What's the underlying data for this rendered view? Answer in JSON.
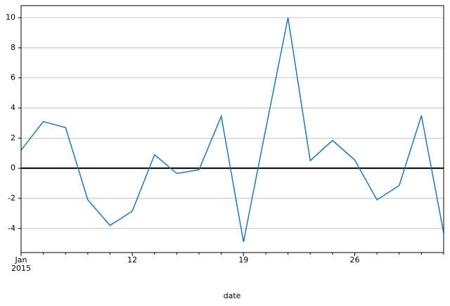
{
  "chart_data": {
    "type": "line",
    "x_label": "date",
    "categories": [
      "Jan\n2015",
      null,
      null,
      null,
      null,
      "12",
      null,
      null,
      null,
      null,
      "19",
      null,
      null,
      null,
      null,
      "26",
      null,
      null,
      null,
      null
    ],
    "series": [
      {
        "color": "#1f77b4",
        "values": [
          1.2,
          3.1,
          2.7,
          -2.1,
          -3.8,
          -2.85,
          0.9,
          -0.35,
          -0.1,
          3.45,
          -4.9,
          2.6,
          10.0,
          0.5,
          1.85,
          0.55,
          -2.1,
          -1.15,
          3.5,
          -4.3
        ]
      }
    ],
    "ylim": [
      -5.6,
      10.8
    ],
    "yticks": [
      -4,
      -2,
      0,
      2,
      4,
      6,
      8,
      10
    ],
    "grid": true,
    "reference_line": 0
  }
}
